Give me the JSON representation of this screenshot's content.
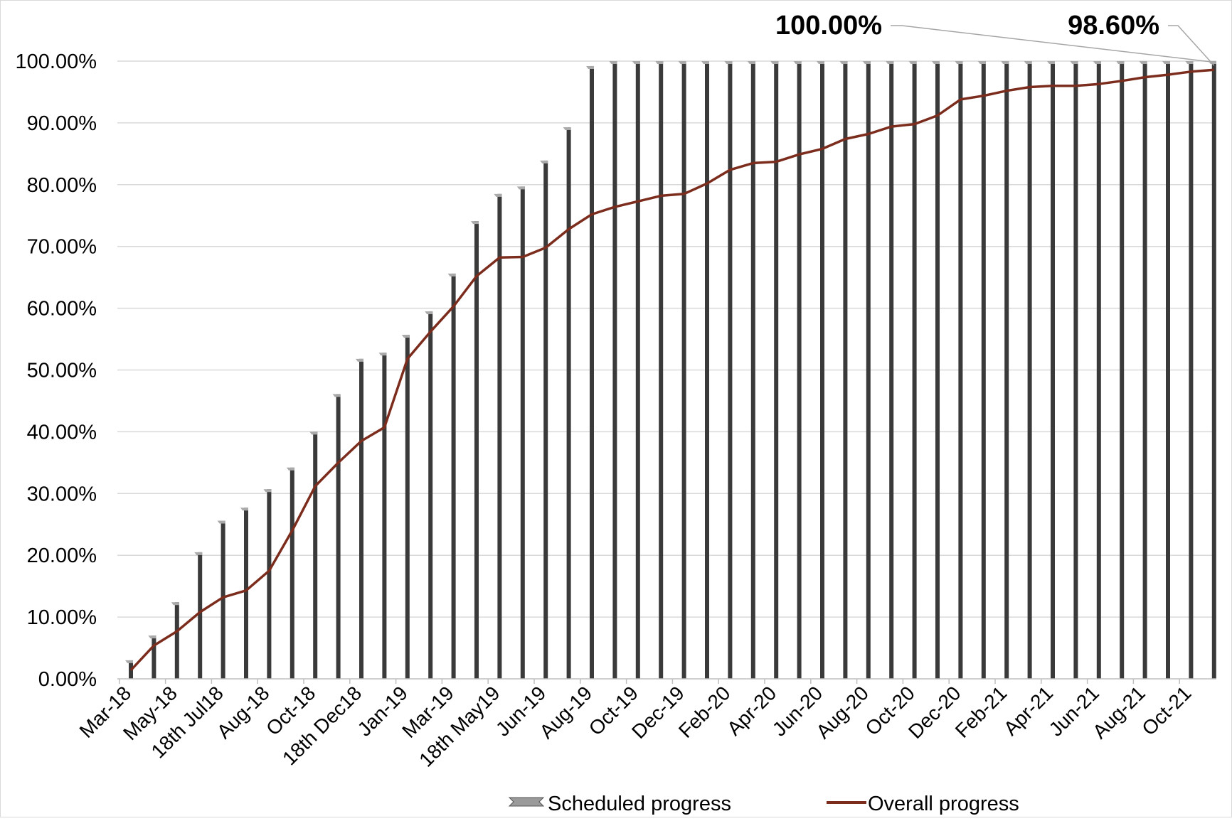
{
  "chart_data": {
    "type": "bar",
    "title": "",
    "xlabel": "",
    "ylabel": "",
    "ylim": [
      0,
      100
    ],
    "y_ticks": [
      "0.00%",
      "10.00%",
      "20.00%",
      "30.00%",
      "40.00%",
      "50.00%",
      "60.00%",
      "70.00%",
      "80.00%",
      "90.00%",
      "100.00%"
    ],
    "x_tick_labels": [
      "Mar-18",
      "May-18",
      "18th Jul18",
      "Aug-18",
      "Oct-18",
      "18th Dec18",
      "Jan-19",
      "Mar-19",
      "18th May19",
      "Jun-19",
      "Aug-19",
      "Oct-19",
      "Dec-19",
      "Feb-20",
      "Apr-20",
      "Jun-20",
      "Aug-20",
      "Oct-20",
      "Dec-20",
      "Feb-21",
      "Apr-21",
      "Jun-21",
      "Aug-21",
      "Oct-21"
    ],
    "grid": true,
    "legend": "bottom",
    "series": [
      {
        "name": "Scheduled progress",
        "type": "bar",
        "color": "#3a3a3a",
        "values": [
          3,
          7,
          12.4,
          20.5,
          25.6,
          27.7,
          30.7,
          34.2,
          40.0,
          46.1,
          51.8,
          52.8,
          55.7,
          59.5,
          65.6,
          74.1,
          78.5,
          79.7,
          83.9,
          89.3,
          99.2,
          100,
          100,
          100,
          100,
          100,
          100,
          100,
          100,
          100,
          100,
          100,
          100,
          100,
          100,
          100,
          100,
          100,
          100,
          100,
          100,
          100,
          100,
          100,
          100,
          100,
          100,
          100
        ]
      },
      {
        "name": "Overall progress",
        "type": "line",
        "color": "#7b2c1c",
        "values": [
          1.4,
          5.4,
          7.7,
          10.8,
          13.2,
          14.3,
          17.5,
          24.0,
          31.2,
          35.0,
          38.5,
          40.7,
          51.8,
          56.2,
          60.3,
          65.2,
          68.2,
          68.3,
          69.8,
          72.8,
          75.2,
          76.4,
          77.3,
          78.2,
          78.5,
          80.2,
          82.4,
          83.5,
          83.7,
          84.9,
          85.8,
          87.4,
          88.2,
          89.4,
          89.8,
          91.2,
          93.8,
          94.4,
          95.2,
          95.8,
          96.0,
          96.0,
          96.3,
          96.8,
          97.4,
          97.8,
          98.3,
          98.6
        ]
      }
    ],
    "annotations": [
      {
        "text": "100.00%",
        "series": "Scheduled progress",
        "point": "last"
      },
      {
        "text": "98.60%",
        "series": "Overall progress",
        "point": "last"
      }
    ]
  }
}
